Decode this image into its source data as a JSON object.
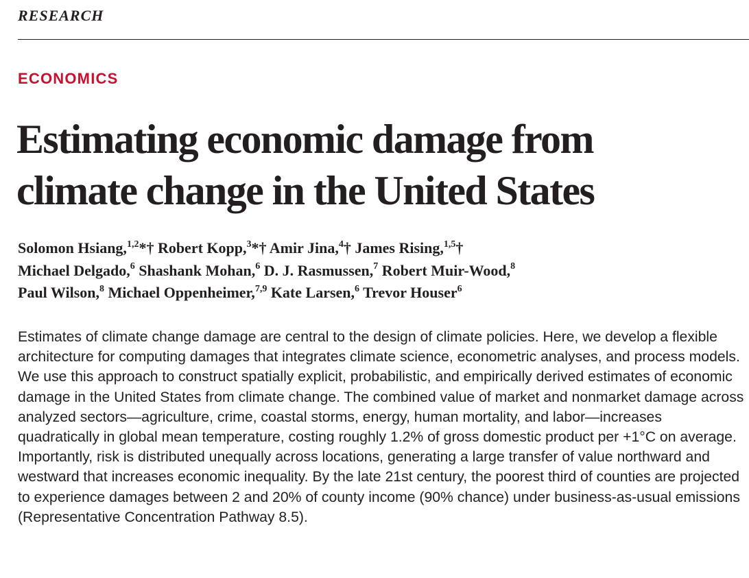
{
  "header": {
    "section": "RESEARCH"
  },
  "article": {
    "category": "ECONOMICS",
    "category_color": "#c8102e",
    "title_line1": "Estimating economic damage from",
    "title_line2": "climate change in the United States",
    "authors": [
      {
        "name": "Solomon Hsiang,",
        "sup": "1,2",
        "marks": "*†"
      },
      {
        "name": "Robert Kopp,",
        "sup": "3",
        "marks": "*†"
      },
      {
        "name": "Amir Jina,",
        "sup": "4",
        "marks": "†"
      },
      {
        "name": "James Rising,",
        "sup": "1,5",
        "marks": "†"
      },
      {
        "name": "Michael Delgado,",
        "sup": "6",
        "marks": ""
      },
      {
        "name": "Shashank Mohan,",
        "sup": "6",
        "marks": ""
      },
      {
        "name": "D. J. Rasmussen,",
        "sup": "7",
        "marks": ""
      },
      {
        "name": "Robert Muir-Wood,",
        "sup": "8",
        "marks": ""
      },
      {
        "name": "Paul Wilson,",
        "sup": "8",
        "marks": ""
      },
      {
        "name": "Michael Oppenheimer,",
        "sup": "7,9",
        "marks": ""
      },
      {
        "name": "Kate Larsen,",
        "sup": "6",
        "marks": ""
      },
      {
        "name": "Trevor Houser",
        "sup": "6",
        "marks": ""
      }
    ],
    "abstract": "Estimates of climate change damage are central to the design of climate policies. Here, we develop a flexible architecture for computing damages that integrates climate science, econometric analyses, and process models. We use this approach to construct spatially explicit, probabilistic, and empirically derived estimates of economic damage in the United States from climate change. The combined value of market and nonmarket damage across analyzed sectors—agriculture, crime, coastal storms, energy, human mortality, and labor—increases quadratically in global mean temperature, costing roughly 1.2% of gross domestic product per +1°C on average. Importantly, risk is distributed unequally across locations, generating a large transfer of value northward and westward that increases economic inequality. By the late 21st century, the poorest third of counties are projected to experience damages between 2 and 20% of county income (90% chance) under business-as-usual emissions (Representative Concentration Pathway 8.5)."
  }
}
